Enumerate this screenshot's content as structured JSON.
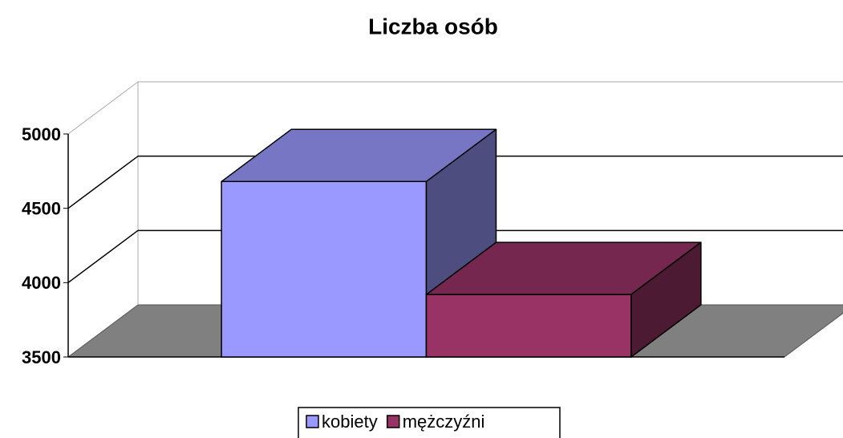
{
  "chart_data": {
    "type": "bar3d",
    "title": "Liczba osób",
    "categories": [
      null
    ],
    "series": [
      {
        "name": "kobiety",
        "color": "#9999ff",
        "values": [
          4680
        ]
      },
      {
        "name": "mężczyźni",
        "color": "#993366",
        "values": [
          3920
        ]
      }
    ],
    "ylim": [
      3500,
      5000
    ],
    "yticks": [
      3500,
      4000,
      4500,
      5000
    ],
    "grid": true,
    "legend": "bottom"
  }
}
